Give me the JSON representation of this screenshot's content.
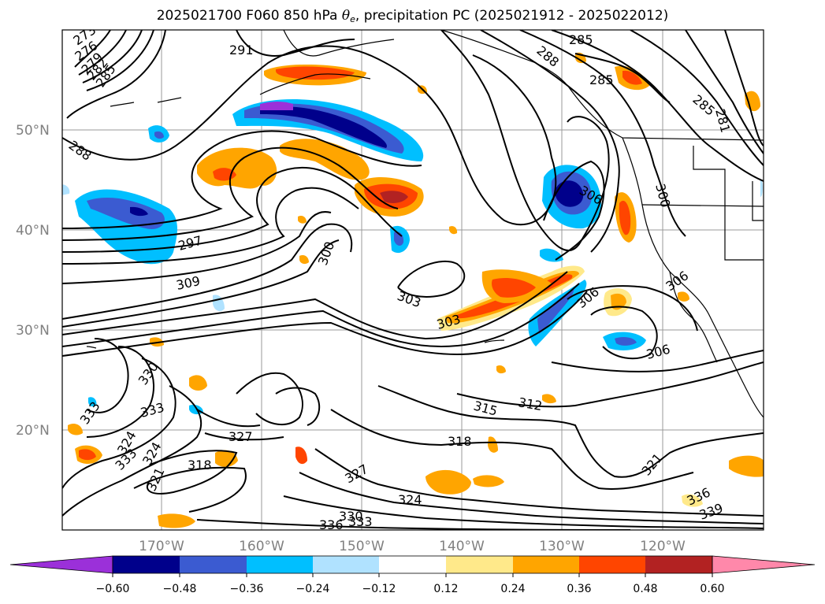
{
  "title": {
    "prefix": "2025021700 F060 850 hPa ",
    "theta_symbol": "θ",
    "theta_subscript": "e",
    "suffix": ", precipitation PC (2025021912 - 2025022012)"
  },
  "map": {
    "lat_labels": [
      "50°N",
      "40°N",
      "30°N",
      "20°N"
    ],
    "lon_labels": [
      "170°W",
      "160°W",
      "150°W",
      "140°W",
      "130°W",
      "120°W"
    ],
    "contour_labels": [
      "273",
      "276",
      "279",
      "282",
      "285",
      "291",
      "288",
      "285",
      "285",
      "285",
      "281",
      "288",
      "300",
      "306",
      "297",
      "309",
      "300",
      "303",
      "303",
      "306",
      "306",
      "306",
      "330",
      "333",
      "333",
      "327",
      "324",
      "333",
      "324",
      "321",
      "318",
      "315",
      "312",
      "318",
      "327",
      "324",
      "321",
      "330",
      "333",
      "336",
      "336",
      "339"
    ]
  },
  "colorbar": {
    "ticks": [
      "−0.60",
      "−0.48",
      "−0.36",
      "−0.24",
      "−0.12",
      "0.12",
      "0.24",
      "0.36",
      "0.48",
      "0.60"
    ],
    "colors": [
      "#9b30d9",
      "#00008b",
      "#3b5bd1",
      "#00bfff",
      "#b0e2ff",
      "#ffffff",
      "#ffe98a",
      "#ffa500",
      "#ff4500",
      "#b22222",
      "#ff88aa"
    ]
  }
}
